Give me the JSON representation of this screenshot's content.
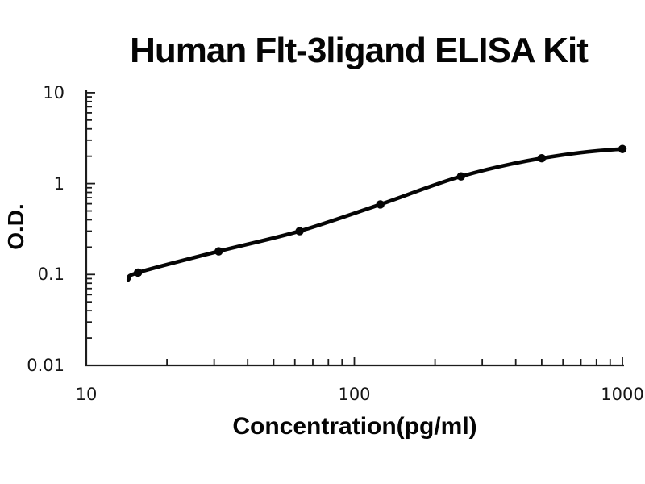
{
  "chart_data": {
    "type": "line",
    "title": "Human Flt-3ligand ELISA Kit",
    "xlabel": "Concentration(pg/ml)",
    "ylabel": "O.D.",
    "x_scale": "log",
    "y_scale": "log",
    "xlim": [
      10,
      1000
    ],
    "ylim": [
      0.01,
      10
    ],
    "x_tick_labels": [
      "10",
      "100",
      "1000"
    ],
    "y_tick_labels": [
      "10",
      "1",
      "0.1",
      "0.01"
    ],
    "grid": false,
    "legend": false,
    "line_color": "#050505",
    "axis_color": "#1c1c1c",
    "background": "#ffffff",
    "series": [
      {
        "x": [
          15.6,
          31.2,
          62.5,
          125,
          250,
          500,
          1000
        ],
        "y": [
          0.105,
          0.18,
          0.3,
          0.59,
          1.2,
          1.9,
          2.4
        ],
        "marker": "circle",
        "color": "#050505"
      }
    ]
  }
}
